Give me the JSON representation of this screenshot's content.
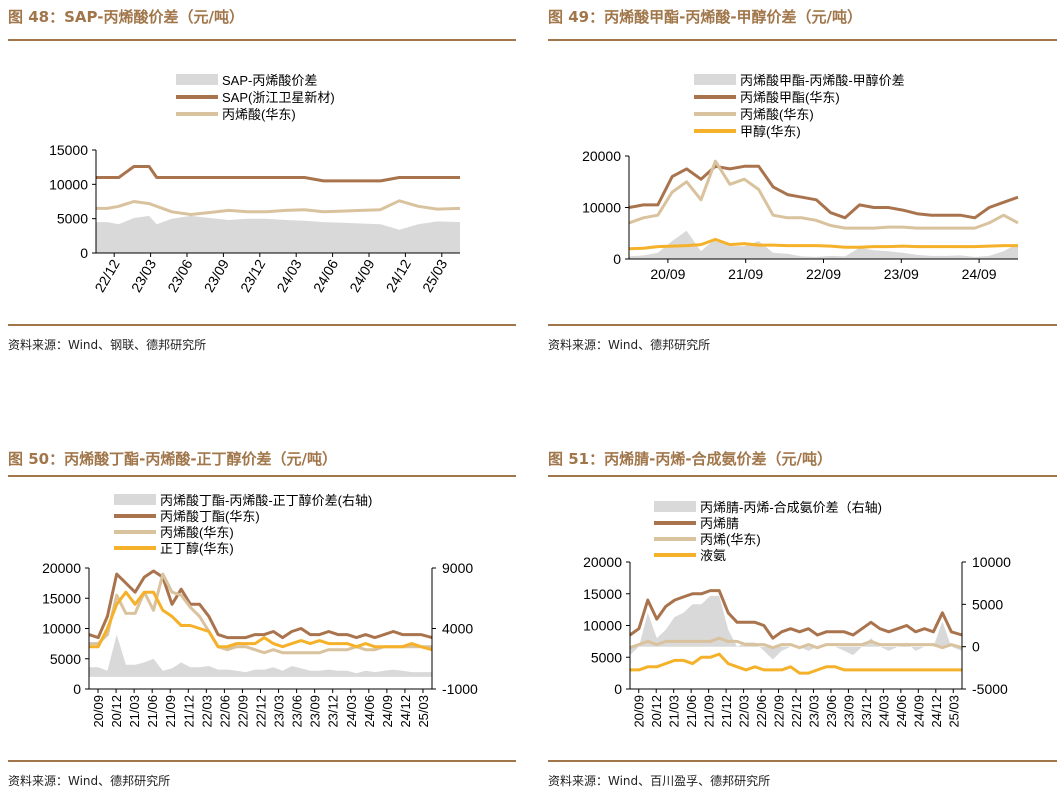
{
  "colors": {
    "accent": "#a0764a",
    "gray": "#d9d9d9",
    "brown": "#a9744d",
    "beige": "#d9c29e",
    "gold": "#f5b12a"
  },
  "panels": [
    {
      "title": "图 48：SAP-丙烯酸价差（元/吨）",
      "source": "资料来源：Wind、钢联、德邦研究所"
    },
    {
      "title": "图 49：丙烯酸甲酯-丙烯酸-甲醇价差（元/吨）",
      "source": "资料来源：Wind、德邦研究所"
    },
    {
      "title": "图 50：丙烯酸丁酯-丙烯酸-正丁醇价差（元/吨）",
      "source": "资料来源：Wind、德邦研究所"
    },
    {
      "title": "图 51：丙烯腈-丙烯-合成氨价差（元/吨）",
      "source": "资料来源：Wind、百川盈孚、德邦研究所"
    }
  ],
  "chart_data": [
    {
      "type": "area+line",
      "title": "SAP-丙烯酸价差（元/吨）",
      "legend": [
        "SAP-丙烯酸价差",
        "SAP(浙江卫星新材)",
        "丙烯酸(华东)"
      ],
      "x_ticks": [
        "22/12",
        "23/03",
        "23/06",
        "23/09",
        "23/12",
        "24/03",
        "24/06",
        "24/09",
        "24/12",
        "25/03"
      ],
      "ylim": [
        0,
        15000
      ],
      "y_ticks": [
        "15000",
        "10000",
        "5000",
        "0"
      ],
      "x": [
        0,
        0.3,
        0.6,
        1.0,
        1.4,
        1.6,
        2.0,
        2.5,
        3.0,
        3.5,
        4.0,
        4.5,
        5.0,
        5.5,
        6.0,
        6.5,
        7.0,
        7.5,
        8.0,
        8.5,
        9.0,
        9.6
      ],
      "series": [
        {
          "name": "SAP(浙江卫星新材)",
          "kind": "line",
          "color": "brown",
          "values": [
            11000,
            11000,
            11000,
            12600,
            12600,
            11000,
            11000,
            11000,
            11000,
            11000,
            11000,
            11000,
            11000,
            11000,
            10500,
            10500,
            10500,
            10500,
            11000,
            11000,
            11000,
            11000
          ]
        },
        {
          "name": "丙烯酸(华东)",
          "kind": "line",
          "color": "beige",
          "values": [
            6500,
            6500,
            6800,
            7500,
            7200,
            6800,
            6000,
            5600,
            5900,
            6200,
            6000,
            6000,
            6200,
            6300,
            6000,
            6100,
            6200,
            6300,
            7600,
            6800,
            6400,
            6500
          ]
        },
        {
          "name": "SAP-丙烯酸价差",
          "kind": "area",
          "color": "gray",
          "values": [
            4500,
            4500,
            4200,
            5100,
            5400,
            4200,
            5000,
            5400,
            5100,
            4800,
            5000,
            5000,
            4800,
            4700,
            4500,
            4400,
            4300,
            4200,
            3400,
            4200,
            4600,
            4500
          ]
        }
      ]
    },
    {
      "type": "area+line",
      "title": "丙烯酸甲酯-丙烯酸-甲醇价差（元/吨）",
      "legend": [
        "丙烯酸甲酯-丙烯酸-甲醇价差",
        "丙烯酸甲酯(华东)",
        "丙烯酸(华东)",
        "甲醇(华东)"
      ],
      "x_ticks": [
        "20/09",
        "21/09",
        "22/09",
        "23/09",
        "24/09"
      ],
      "ylim": [
        0,
        20000
      ],
      "y_ticks": [
        "20000",
        "10000",
        "0"
      ],
      "x": [
        0,
        0.2,
        0.4,
        0.6,
        0.8,
        1.0,
        1.2,
        1.4,
        1.6,
        1.8,
        2.0,
        2.2,
        2.4,
        2.6,
        2.8,
        3.0,
        3.2,
        3.4,
        3.6,
        3.8,
        4.0,
        4.2,
        4.4,
        4.6,
        4.8,
        5.0,
        5.2,
        5.4
      ],
      "series": [
        {
          "name": "丙烯酸甲酯(华东)",
          "kind": "line",
          "color": "brown",
          "values": [
            10000,
            10500,
            10500,
            16000,
            17500,
            15500,
            18000,
            17500,
            18000,
            18000,
            14000,
            12500,
            12000,
            11500,
            9000,
            8000,
            10500,
            10000,
            10000,
            9500,
            8800,
            8500,
            8500,
            8500,
            8000,
            10000,
            11000,
            12000
          ]
        },
        {
          "name": "丙烯酸(华东)",
          "kind": "line",
          "color": "beige",
          "values": [
            7000,
            8000,
            8500,
            13000,
            15000,
            11500,
            19000,
            14500,
            15500,
            13500,
            8500,
            8000,
            8000,
            7500,
            6500,
            6000,
            6000,
            6000,
            6200,
            6200,
            6000,
            6000,
            6000,
            6000,
            6000,
            7000,
            8500,
            7000
          ]
        },
        {
          "name": "甲醇(华东)",
          "kind": "line",
          "color": "gold",
          "values": [
            2000,
            2100,
            2400,
            2500,
            2600,
            2800,
            3800,
            2800,
            3000,
            2700,
            2700,
            2600,
            2600,
            2600,
            2500,
            2300,
            2300,
            2400,
            2400,
            2500,
            2400,
            2400,
            2400,
            2400,
            2400,
            2500,
            2600,
            2600
          ]
        },
        {
          "name": "丙烯酸甲酯-丙烯酸-甲醇价差",
          "kind": "area",
          "color": "gray",
          "values": [
            500,
            700,
            1200,
            3500,
            5500,
            1500,
            4000,
            2500,
            2500,
            3500,
            1200,
            1000,
            500,
            400,
            600,
            500,
            2200,
            1700,
            1500,
            1200,
            800,
            600,
            600,
            700,
            400,
            600,
            1500,
            3000
          ]
        }
      ]
    },
    {
      "type": "area+line",
      "title": "丙烯酸丁酯-丙烯酸-正丁醇价差（元/吨）",
      "legend": [
        "丙烯酸丁酯-丙烯酸-正丁醇价差(右轴)",
        "丙烯酸丁酯(华东)",
        "丙烯酸(华东)",
        "正丁醇(华东)"
      ],
      "x_ticks": [
        "20/09",
        "20/12",
        "21/03",
        "21/06",
        "21/09",
        "21/12",
        "22/03",
        "22/06",
        "22/09",
        "22/12",
        "23/03",
        "23/06",
        "23/09",
        "23/12",
        "24/03",
        "24/06",
        "24/09",
        "24/12",
        "25/03"
      ],
      "ylim": [
        0,
        20000
      ],
      "y_ticks": [
        "20000",
        "15000",
        "10000",
        "5000",
        "0"
      ],
      "y2lim": [
        -1000,
        9000
      ],
      "y2_ticks": [
        "9000",
        "4000",
        "-1000"
      ],
      "x": [
        0,
        0.5,
        1,
        1.5,
        2,
        2.5,
        3,
        3.5,
        4,
        4.5,
        5,
        5.5,
        6,
        6.5,
        7,
        7.5,
        8,
        8.5,
        9,
        9.5,
        10,
        10.5,
        11,
        11.5,
        12,
        12.5,
        13,
        13.5,
        14,
        14.5,
        15,
        15.5,
        16,
        16.5,
        17,
        17.5,
        18,
        18.6
      ],
      "series": [
        {
          "name": "丙烯酸丁酯(华东)",
          "kind": "line",
          "color": "brown",
          "values": [
            9000,
            8500,
            12000,
            19000,
            17500,
            16000,
            18500,
            19500,
            18500,
            14000,
            16500,
            14000,
            14000,
            12000,
            9000,
            8500,
            8500,
            8500,
            9000,
            9000,
            9500,
            8500,
            9500,
            10000,
            9000,
            9000,
            9500,
            9000,
            9000,
            8500,
            9000,
            8500,
            9000,
            9500,
            9000,
            9000,
            9000,
            8500
          ]
        },
        {
          "name": "丙烯酸(华东)",
          "kind": "line",
          "color": "beige",
          "values": [
            7500,
            7500,
            9000,
            15500,
            12500,
            12500,
            16000,
            13000,
            19000,
            16000,
            15500,
            13500,
            12000,
            9500,
            7000,
            6500,
            7000,
            7000,
            6500,
            6000,
            6500,
            6000,
            6000,
            6000,
            6000,
            6000,
            6500,
            6500,
            6500,
            7000,
            6500,
            6500,
            7000,
            7000,
            7000,
            7000,
            7000,
            7000
          ]
        },
        {
          "name": "正丁醇(华东)",
          "kind": "line",
          "color": "gold",
          "values": [
            7000,
            7000,
            10000,
            14000,
            16000,
            14000,
            16000,
            16000,
            13000,
            12000,
            10500,
            10500,
            10000,
            9500,
            7000,
            7000,
            7500,
            7500,
            7500,
            8500,
            7500,
            7000,
            7500,
            8000,
            7500,
            8000,
            7500,
            7500,
            7500,
            7000,
            7500,
            7000,
            7000,
            7000,
            7000,
            7500,
            7000,
            6500
          ]
        },
        {
          "name": "丙烯酸丁酯-丙烯酸-正丁醇价差(右轴)",
          "kind": "area",
          "axis": "right",
          "color": "gray",
          "values": [
            800,
            800,
            500,
            3500,
            1000,
            1000,
            1200,
            1500,
            500,
            700,
            1200,
            800,
            800,
            900,
            600,
            600,
            500,
            400,
            600,
            600,
            800,
            500,
            900,
            700,
            500,
            500,
            600,
            500,
            500,
            300,
            500,
            400,
            500,
            600,
            500,
            400,
            400,
            400
          ]
        }
      ]
    },
    {
      "type": "area+line",
      "title": "丙烯腈-丙烯-合成氨价差（元/吨）",
      "legend": [
        "丙烯腈-丙烯-合成氨价差（右轴)",
        "丙烯腈",
        "丙烯(华东)",
        "液氨"
      ],
      "x_ticks": [
        "20/09",
        "20/12",
        "21/03",
        "21/06",
        "21/09",
        "21/12",
        "22/03",
        "22/06",
        "22/09",
        "22/12",
        "23/03",
        "23/06",
        "23/09",
        "23/12",
        "24/03",
        "24/06",
        "24/09",
        "24/12",
        "25/03"
      ],
      "ylim": [
        0,
        20000
      ],
      "y_ticks": [
        "20000",
        "15000",
        "10000",
        "5000",
        "0"
      ],
      "y2lim": [
        -5000,
        10000
      ],
      "y2_ticks": [
        "10000",
        "5000",
        "0",
        "-5000"
      ],
      "x": [
        0,
        0.5,
        1,
        1.5,
        2,
        2.5,
        3,
        3.5,
        4,
        4.5,
        5,
        5.5,
        6,
        6.5,
        7,
        7.5,
        8,
        8.5,
        9,
        9.5,
        10,
        10.5,
        11,
        11.5,
        12,
        12.5,
        13,
        13.5,
        14,
        14.5,
        15,
        15.5,
        16,
        16.5,
        17,
        17.5,
        18,
        18.6
      ],
      "series": [
        {
          "name": "丙烯腈",
          "kind": "line",
          "color": "brown",
          "values": [
            8500,
            9500,
            14000,
            11000,
            13000,
            14000,
            14500,
            15000,
            15000,
            15500,
            15500,
            12000,
            10500,
            10500,
            10500,
            10000,
            8000,
            9000,
            9500,
            9000,
            9500,
            8500,
            9000,
            9000,
            9000,
            8500,
            9500,
            10500,
            9500,
            9000,
            9500,
            10000,
            9000,
            9500,
            9000,
            12000,
            9000,
            8500
          ]
        },
        {
          "name": "丙烯(华东)",
          "kind": "line",
          "color": "beige",
          "values": [
            6500,
            7000,
            7500,
            7000,
            7500,
            7500,
            7500,
            7500,
            7500,
            7500,
            8000,
            7500,
            7500,
            7000,
            7000,
            7000,
            6500,
            7000,
            7000,
            6500,
            7000,
            6500,
            7000,
            7000,
            7000,
            7000,
            7000,
            7500,
            7000,
            7000,
            7000,
            7000,
            7000,
            7000,
            7000,
            6500,
            7000,
            6500
          ]
        },
        {
          "name": "液氨",
          "kind": "line",
          "color": "gold",
          "values": [
            3000,
            3000,
            3500,
            3500,
            4000,
            4500,
            4500,
            4000,
            5000,
            5000,
            5500,
            4000,
            3500,
            3000,
            3500,
            3000,
            3000,
            3000,
            3500,
            2500,
            2500,
            3000,
            3500,
            3500,
            3000,
            3000,
            3000,
            3000,
            3000,
            3000,
            3000,
            3000,
            3000,
            3000,
            3000,
            3000,
            3000,
            3000
          ]
        },
        {
          "name": "丙烯腈-丙烯-合成氨价差（右轴)",
          "kind": "area",
          "axis": "right",
          "color": "gray",
          "values": [
            -1000,
            0,
            4000,
            1000,
            2000,
            3500,
            4000,
            5000,
            5000,
            6000,
            6000,
            2000,
            0,
            500,
            500,
            -500,
            -1500,
            -500,
            0,
            0,
            -500,
            0,
            0,
            0,
            -500,
            -1000,
            0,
            1000,
            0,
            -500,
            0,
            500,
            -500,
            0,
            0,
            3000,
            0,
            -500
          ]
        }
      ]
    }
  ]
}
